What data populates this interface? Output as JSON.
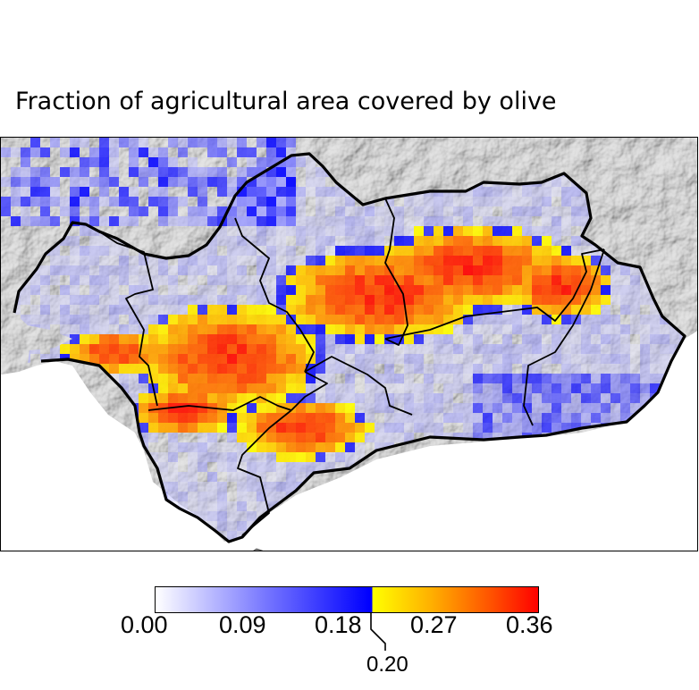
{
  "title": "Fraction of agricultural area covered by olive",
  "colorbar": {
    "ticks": [
      "0.00",
      "0.09",
      "0.18",
      "0.27",
      "0.36"
    ],
    "threshold_label": "0.20",
    "min": 0.0,
    "max": 0.36,
    "threshold": 0.2,
    "low_colors": [
      "#ffffff",
      "#0000ff"
    ],
    "high_colors": [
      "#ffff00",
      "#ff0000"
    ]
  },
  "map": {
    "region": "Andalusia",
    "layers": [
      "hillshade-relief",
      "olive-fraction-grid",
      "province-boundaries",
      "coastline"
    ]
  }
}
